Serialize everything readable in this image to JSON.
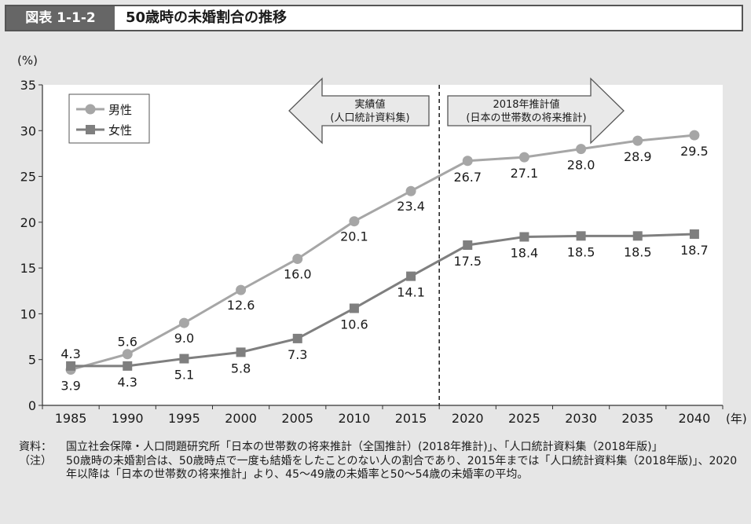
{
  "header": {
    "figure_no": "図表 1-1-2",
    "title": "50歳時の未婚割合の推移"
  },
  "chart_data": {
    "type": "line",
    "x": [
      1985,
      1990,
      1995,
      2000,
      2005,
      2010,
      2015,
      2020,
      2025,
      2030,
      2035,
      2040
    ],
    "x_labels": [
      "1985",
      "1990",
      "1995",
      "2000",
      "2005",
      "2010",
      "2015",
      "2020",
      "2025",
      "2030",
      "2035",
      "2040"
    ],
    "x_unit": "(年)",
    "y_unit": "(%)",
    "ylim": [
      0,
      35
    ],
    "y_ticks": [
      "0",
      "5",
      "10",
      "15",
      "20",
      "25",
      "30",
      "35"
    ],
    "grid": false,
    "legend_position": "top-left",
    "series": [
      {
        "name": "男性",
        "marker": "circle",
        "color": "#a6a6a6",
        "values": [
          3.9,
          5.6,
          9.0,
          12.6,
          16.0,
          20.1,
          23.4,
          26.7,
          27.1,
          28.0,
          28.9,
          29.5
        ],
        "labels": [
          "3.9",
          "5.6",
          "9.0",
          "12.6",
          "16.0",
          "20.1",
          "23.4",
          "26.7",
          "27.1",
          "28.0",
          "28.9",
          "29.5"
        ]
      },
      {
        "name": "女性",
        "marker": "square",
        "color": "#7f7f7f",
        "values": [
          4.3,
          4.3,
          5.1,
          5.8,
          7.3,
          10.6,
          14.1,
          17.5,
          18.4,
          18.5,
          18.5,
          18.7
        ],
        "labels": [
          "4.3",
          "4.3",
          "5.1",
          "5.8",
          "7.3",
          "10.6",
          "14.1",
          "17.5",
          "18.4",
          "18.5",
          "18.5",
          "18.7"
        ]
      }
    ],
    "divider_between": [
      2015,
      2020
    ],
    "annotations": {
      "actual": [
        "実績値",
        "(人口統計資料集)"
      ],
      "projected": [
        "2018年推計値",
        "(日本の世帯数の将来推計)"
      ]
    }
  },
  "notes": {
    "source_head": "資料：",
    "source_text": "国立社会保障・人口問題研究所「日本の世帯数の将来推計（全国推計）(2018年推計)」、「人口統計資料集（2018年版)」",
    "note_head": "（注）",
    "note_text": "50歳時の未婚割合は、50歳時点で一度も結婚をしたことのない人の割合であり、2015年までは「人口統計資料集（2018年版)」、2020年以降は「日本の世帯数の将来推計」より、45〜49歳の未婚率と50〜54歳の未婚率の平均。"
  }
}
